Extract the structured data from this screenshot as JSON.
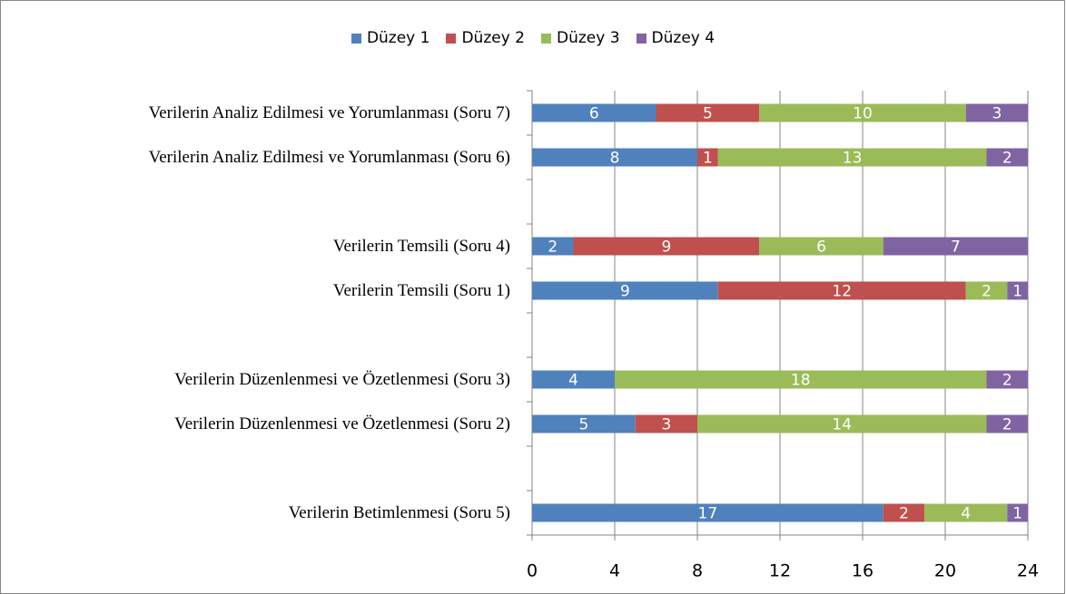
{
  "chart_data": {
    "type": "stacked-bar-horizontal",
    "categories": [
      "Verilerin Analiz Edilmesi ve Yorumlanması (Soru 7)",
      "Verilerin Analiz Edilmesi ve Yorumlanması (Soru 6)",
      null,
      "Verilerin Temsili (Soru 4)",
      "Verilerin Temsili (Soru 1)",
      null,
      "Verilerin Düzenlenmesi ve Özetlenmesi (Soru 3)",
      "Verilerin Düzenlenmesi ve Özetlenmesi (Soru 2)",
      null,
      "Verilerin Betimlenmesi (Soru 5)"
    ],
    "series": [
      {
        "name": "Düzey 1",
        "color": "#4f81bd",
        "values": [
          6,
          8,
          null,
          2,
          9,
          null,
          4,
          5,
          null,
          17
        ]
      },
      {
        "name": "Düzey 2",
        "color": "#c0504d",
        "values": [
          5,
          1,
          null,
          9,
          12,
          null,
          null,
          3,
          null,
          2
        ]
      },
      {
        "name": "Düzey 3",
        "color": "#9bbb59",
        "values": [
          10,
          13,
          null,
          6,
          2,
          null,
          18,
          14,
          null,
          4
        ]
      },
      {
        "name": "Düzey 4",
        "color": "#8064a2",
        "values": [
          3,
          2,
          null,
          7,
          1,
          null,
          2,
          2,
          null,
          1
        ]
      }
    ],
    "xlim": [
      0,
      24
    ],
    "xticks": [
      0,
      4,
      8,
      12,
      16,
      20,
      24
    ],
    "grid": true,
    "legend": "top"
  }
}
